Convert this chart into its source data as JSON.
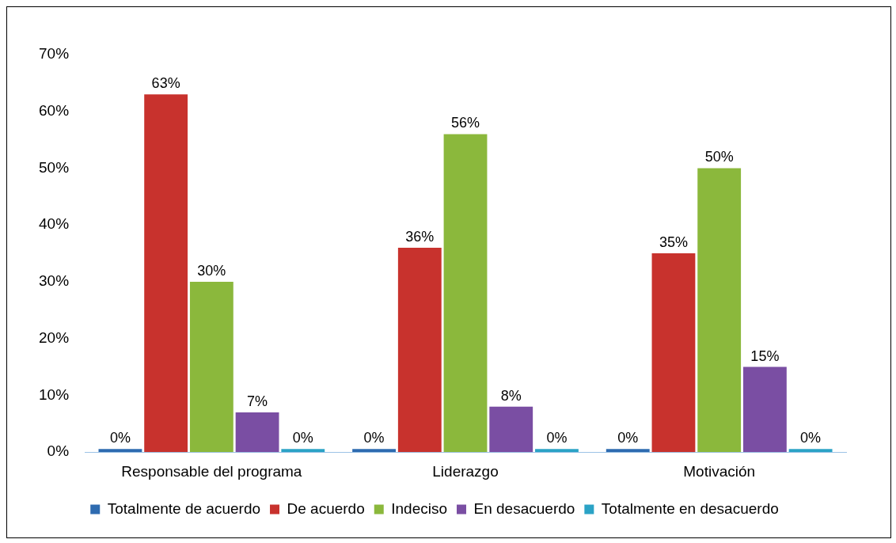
{
  "chart_data": {
    "type": "bar",
    "categories": [
      "Responsable del programa",
      "Liderazgo",
      "Motivación"
    ],
    "series": [
      {
        "name": "Totalmente de acuerdo",
        "color": "#2e6bb0",
        "values": [
          0,
          0,
          0
        ],
        "value_labels": [
          "0%",
          "0%",
          "0%"
        ]
      },
      {
        "name": "De acuerdo",
        "color": "#c8322d",
        "values": [
          63,
          36,
          35
        ],
        "value_labels": [
          "63%",
          "36%",
          "35%"
        ]
      },
      {
        "name": "Indeciso",
        "color": "#8bb83c",
        "values": [
          30,
          56,
          50
        ],
        "value_labels": [
          "30%",
          "56%",
          "50%"
        ]
      },
      {
        "name": "En desacuerdo",
        "color": "#7a4ea3",
        "values": [
          7,
          8,
          15
        ],
        "value_labels": [
          "7%",
          "8%",
          "15%"
        ]
      },
      {
        "name": "Totalmente en desacuerdo",
        "color": "#2ba3c6",
        "values": [
          0,
          0,
          0
        ],
        "value_labels": [
          "0%",
          "0%",
          "0%"
        ]
      }
    ],
    "ylim": [
      0,
      70
    ],
    "yticks": [
      {
        "value": 0,
        "label": "0%"
      },
      {
        "value": 10,
        "label": "10%"
      },
      {
        "value": 20,
        "label": "20%"
      },
      {
        "value": 30,
        "label": "30%"
      },
      {
        "value": 40,
        "label": "40%"
      },
      {
        "value": 50,
        "label": "50%"
      },
      {
        "value": 60,
        "label": "60%"
      },
      {
        "value": 70,
        "label": "70%"
      }
    ],
    "grid": false,
    "legend": "bottom"
  }
}
